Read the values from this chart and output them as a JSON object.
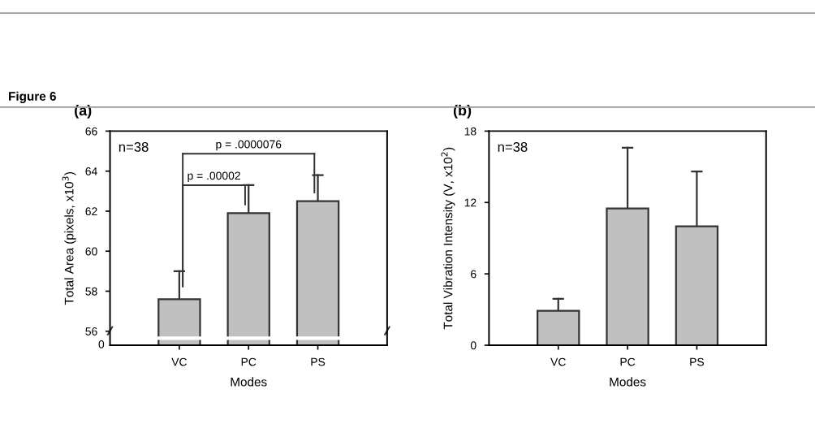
{
  "chart_data": [
    {
      "type": "bar",
      "title": "(a)",
      "xlabel": "Modes",
      "ylabel": "Total Area (pixels, x10$^{3}$)",
      "categories": [
        "VC",
        "PC",
        "PS"
      ],
      "values": [
        57.6,
        61.9,
        62.5
      ],
      "errors": [
        [
          57.6,
          59.0
        ],
        [
          61.9,
          63.3
        ],
        [
          62.5,
          63.8
        ]
      ],
      "color": "#c0c0c0",
      "ylim": [
        55.3,
        66
      ],
      "yticks": [
        56,
        58,
        60,
        62,
        64,
        66
      ],
      "grid": false,
      "legend": false,
      "annotations": [
        "Figure 6",
        "n=38",
        "0",
        {
          "text": "p = .00002",
          "x": "PC",
          "y": 63.3
        },
        "p = .0000076"
      ]
    },
    {
      "type": "bar",
      "title": "(b)",
      "xlabel": "Modes",
      "ylabel": "Total Vibration Intensity (V, x10$^{2}$)",
      "categories": [
        "VC",
        "PC",
        "PS"
      ],
      "values": [
        2.9,
        11.5,
        10.0
      ],
      "errors": [
        [
          2.9,
          3.9
        ],
        [
          11.5,
          16.6
        ],
        [
          10.0,
          14.6
        ]
      ],
      "color": "#c0c0c0",
      "ylim": [
        0,
        18
      ],
      "yticks": [
        0,
        6,
        12,
        18
      ],
      "grid": false,
      "legend": false,
      "annotations": [
        "n=38"
      ]
    }
  ]
}
